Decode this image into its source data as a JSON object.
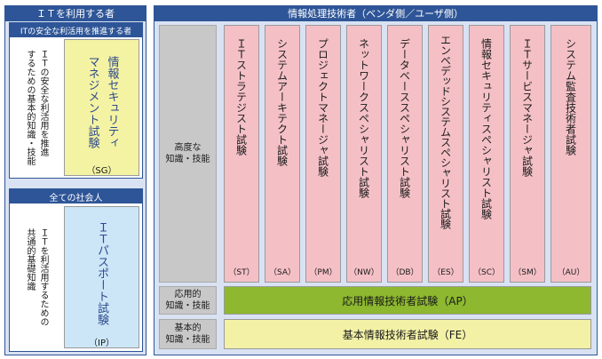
{
  "left_panel": {
    "title": "ＩＴを利用する者",
    "upper": {
      "header": "ITの安全な利活用を推進する者",
      "side_text": "ＩＴの安全な利活用を推進\nするための基本的知識・技能",
      "exam": "情報セキュリティ\nマネジメント試験",
      "code": "（SG）"
    },
    "lower": {
      "header": "全ての社会人",
      "side_text": "ＩＴを利活用するための\n共通的基礎知識",
      "exam": "ＩＴパスポート試験",
      "code": "（IP）"
    }
  },
  "right_panel": {
    "title": "情報処理技術者（ベンダ側／ユーザ側）",
    "advanced_label": "高度な\n知識・技能",
    "applied_label": "応用的\n知識・技能",
    "basic_label": "基本的\n知識・技能",
    "advanced_exams": [
      {
        "name": "ＩＴストラテジスト試験",
        "code": "（ST）"
      },
      {
        "name": "システムアーキテクト試験",
        "code": "（SA）"
      },
      {
        "name": "プロジェクトマネージャ試験",
        "code": "（PM）"
      },
      {
        "name": "ネットワークスペシャリスト試験",
        "code": "（NW）"
      },
      {
        "name": "データベーススペシャリスト試験",
        "code": "（DB）"
      },
      {
        "name": "エンベデッドシステムスペシャリスト試験",
        "code": "（ES）"
      },
      {
        "name": "情報セキュリティスペシャリスト試験",
        "code": "（SC）"
      },
      {
        "name": "ＩＴサービスマネージャ試験",
        "code": "（SM）"
      },
      {
        "name": "システム監査技術者試験",
        "code": "（AU）"
      }
    ],
    "applied_exam": "応用情報技術者試験（AP）",
    "basic_exam": "基本情報技術者試験（FE）"
  },
  "colors": {
    "navy": "#2e5597",
    "panel_bg": "#d9e2f3",
    "yellow": "#f4f3a4",
    "blue": "#cce6f8",
    "pink": "#f4c0c6",
    "green": "#8db82f",
    "light_yellow": "#f3f1a6"
  }
}
